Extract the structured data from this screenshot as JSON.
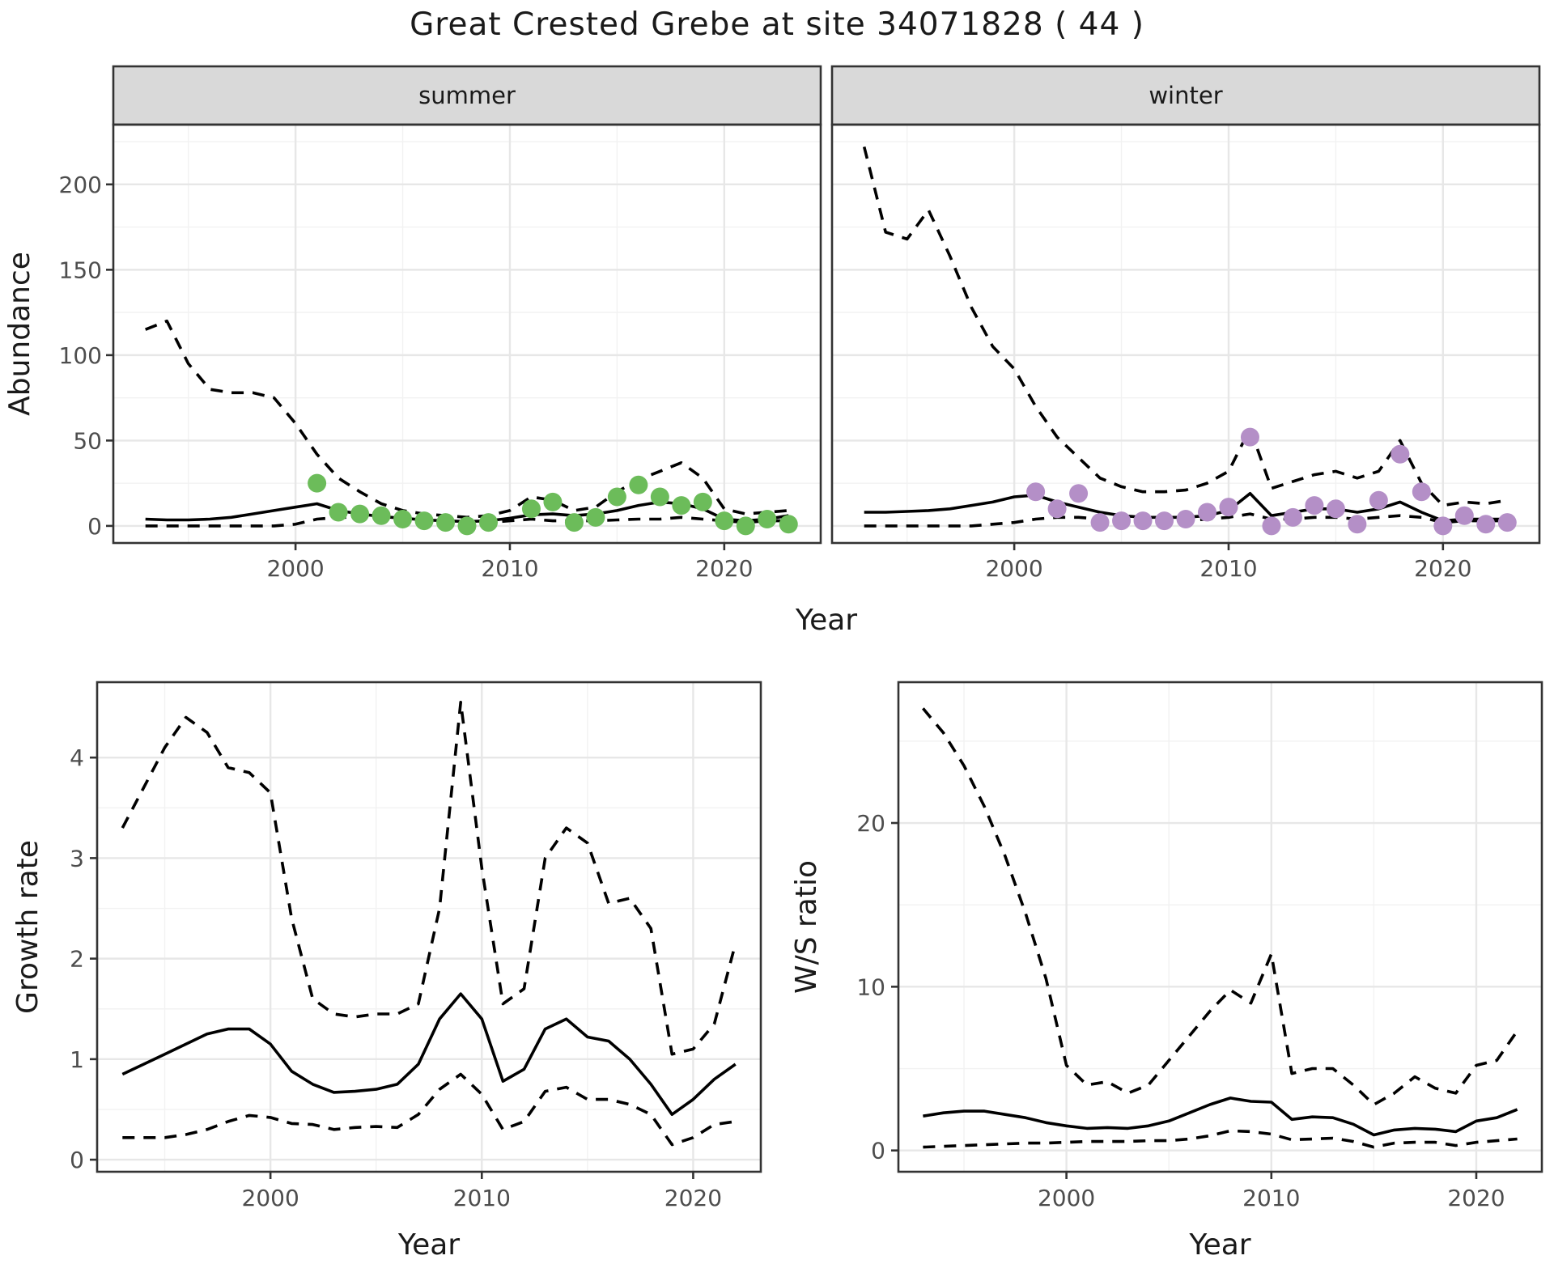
{
  "title": "Great Crested Grebe at site 34071828 ( 44 )",
  "style": {
    "point_summer": "#6cbc5a",
    "point_winter": "#b48fc7",
    "strip_fill": "#d9d9d9",
    "panel_border": "#333333",
    "grid_major": "#e7e7e7",
    "grid_minor": "#f2f2f2",
    "tick_label_color": "#4d4d4d",
    "text_color": "#1a1a1a",
    "line_color": "#000000"
  },
  "chart_data": [
    {
      "id": "abundance",
      "type": "line",
      "ylabel": "Abundance",
      "xlabel": "Year",
      "ylim": [
        -10,
        235
      ],
      "xlim": [
        1991.5,
        2024.5
      ],
      "yticks": [
        0,
        50,
        100,
        150,
        200
      ],
      "yminor": [
        25,
        75,
        125,
        175,
        225
      ],
      "xticks": [
        2000,
        2010,
        2020
      ],
      "xminor": [
        1995,
        2005,
        2015
      ],
      "legend": "none",
      "grid": true,
      "panels": [
        {
          "facet": "summer",
          "point_color": "#6cbc5a",
          "years": [
            1993,
            1994,
            1995,
            1996,
            1997,
            1998,
            1999,
            2000,
            2001,
            2002,
            2003,
            2004,
            2005,
            2006,
            2007,
            2008,
            2009,
            2010,
            2011,
            2012,
            2013,
            2014,
            2015,
            2016,
            2017,
            2018,
            2019,
            2020,
            2021,
            2022,
            2023
          ],
          "pred": [
            4,
            3.5,
            3.5,
            4,
            5,
            7,
            9,
            11,
            13,
            9,
            7,
            5.5,
            4.5,
            3.5,
            3,
            2.5,
            3,
            4.5,
            6.5,
            7,
            6,
            7,
            9,
            12,
            14,
            13,
            10,
            4,
            3,
            4,
            6
          ],
          "hi": [
            115,
            120,
            95,
            80,
            78,
            78,
            75,
            60,
            42,
            28,
            20,
            13,
            9,
            7,
            6,
            5,
            6,
            9,
            17,
            15,
            9,
            11,
            20,
            27,
            32,
            37,
            28,
            10,
            7,
            8,
            9
          ],
          "lo": [
            0,
            0,
            0,
            0,
            0,
            0,
            0,
            1,
            4,
            5,
            5,
            4,
            3,
            3,
            2,
            2,
            2,
            3,
            4,
            3,
            3,
            3,
            3.5,
            4,
            4,
            5,
            4,
            3,
            2,
            3,
            3
          ],
          "obs_years": [
            2001,
            2002,
            2003,
            2004,
            2005,
            2006,
            2007,
            2008,
            2009,
            2011,
            2012,
            2013,
            2014,
            2015,
            2016,
            2017,
            2018,
            2019,
            2020,
            2021,
            2022,
            2023
          ],
          "obs": [
            25,
            8,
            7,
            6,
            4,
            3,
            2,
            0,
            2,
            10,
            14,
            2,
            5,
            17,
            24,
            17,
            12,
            14,
            3,
            0,
            4,
            1
          ]
        },
        {
          "facet": "winter",
          "point_color": "#b48fc7",
          "years": [
            1993,
            1994,
            1995,
            1996,
            1997,
            1998,
            1999,
            2000,
            2001,
            2002,
            2003,
            2004,
            2005,
            2006,
            2007,
            2008,
            2009,
            2010,
            2011,
            2012,
            2013,
            2014,
            2015,
            2016,
            2017,
            2018,
            2019,
            2020,
            2021,
            2022,
            2023
          ],
          "pred": [
            8,
            8,
            8.5,
            9,
            10,
            12,
            14,
            17,
            18,
            14,
            11,
            8,
            6,
            5,
            5,
            5,
            6,
            9,
            19,
            6,
            8,
            10,
            10,
            8,
            10,
            14,
            8,
            3,
            4,
            4,
            4
          ],
          "hi": [
            222,
            172,
            168,
            185,
            158,
            128,
            105,
            92,
            70,
            52,
            40,
            28,
            23,
            20,
            20,
            21,
            25,
            32,
            57,
            22,
            26,
            30,
            32,
            28,
            32,
            50,
            25,
            12,
            14,
            13,
            15
          ],
          "lo": [
            0,
            0,
            0,
            0,
            0,
            0,
            1,
            2,
            4,
            5,
            5,
            4,
            3,
            3,
            3,
            3,
            4,
            5,
            7,
            4,
            4,
            5,
            5,
            4,
            5,
            6,
            5,
            2,
            3,
            3,
            3
          ],
          "obs_years": [
            2001,
            2002,
            2003,
            2004,
            2005,
            2006,
            2007,
            2008,
            2009,
            2010,
            2011,
            2012,
            2013,
            2014,
            2015,
            2016,
            2017,
            2018,
            2019,
            2020,
            2021,
            2022,
            2023
          ],
          "obs": [
            20,
            10,
            19,
            2,
            3,
            3,
            3,
            4,
            8,
            11,
            52,
            0,
            5,
            12,
            10,
            1,
            15,
            42,
            20,
            0,
            6,
            1,
            2
          ]
        }
      ]
    },
    {
      "id": "growth",
      "type": "line",
      "ylabel": "Growth rate",
      "xlabel": "Year",
      "ylim": [
        -0.12,
        4.75
      ],
      "xlim": [
        1991.8,
        2023.2
      ],
      "yticks": [
        0,
        1,
        2,
        3,
        4
      ],
      "yminor": [
        0.5,
        1.5,
        2.5,
        3.5
      ],
      "xticks": [
        2000,
        2010,
        2020
      ],
      "xminor": [
        1995,
        2005,
        2015
      ],
      "legend": "none",
      "grid": true,
      "panels": [
        {
          "facet": null,
          "years": [
            1993,
            1994,
            1995,
            1996,
            1997,
            1998,
            1999,
            2000,
            2001,
            2002,
            2003,
            2004,
            2005,
            2006,
            2007,
            2008,
            2009,
            2010,
            2011,
            2012,
            2013,
            2014,
            2015,
            2016,
            2017,
            2018,
            2019,
            2020,
            2021,
            2022
          ],
          "pred": [
            0.85,
            0.95,
            1.05,
            1.15,
            1.25,
            1.3,
            1.3,
            1.15,
            0.88,
            0.75,
            0.67,
            0.68,
            0.7,
            0.75,
            0.95,
            1.4,
            1.65,
            1.4,
            0.78,
            0.9,
            1.3,
            1.4,
            1.22,
            1.18,
            1.0,
            0.75,
            0.45,
            0.6,
            0.8,
            0.95
          ],
          "hi": [
            3.3,
            3.7,
            4.1,
            4.4,
            4.25,
            3.9,
            3.85,
            3.65,
            2.4,
            1.6,
            1.45,
            1.42,
            1.45,
            1.45,
            1.55,
            2.5,
            4.55,
            2.9,
            1.55,
            1.7,
            3.0,
            3.3,
            3.15,
            2.55,
            2.6,
            2.3,
            1.05,
            1.1,
            1.35,
            2.15
          ],
          "lo": [
            0.22,
            0.22,
            0.22,
            0.25,
            0.3,
            0.38,
            0.44,
            0.42,
            0.36,
            0.35,
            0.3,
            0.32,
            0.33,
            0.32,
            0.45,
            0.7,
            0.85,
            0.65,
            0.3,
            0.38,
            0.68,
            0.72,
            0.6,
            0.6,
            0.55,
            0.45,
            0.15,
            0.22,
            0.35,
            0.38
          ]
        }
      ]
    },
    {
      "id": "ws",
      "type": "line",
      "ylabel": "W/S ratio",
      "xlabel": "Year",
      "ylim": [
        -1.3,
        28.6
      ],
      "xlim": [
        1991.8,
        2023.2
      ],
      "yticks": [
        0,
        10,
        20
      ],
      "yminor": [
        5,
        15,
        25
      ],
      "xticks": [
        2000,
        2010,
        2020
      ],
      "xminor": [
        1995,
        2005,
        2015
      ],
      "legend": "none",
      "grid": true,
      "panels": [
        {
          "facet": null,
          "years": [
            1993,
            1994,
            1995,
            1996,
            1997,
            1998,
            1999,
            2000,
            2001,
            2002,
            2003,
            2004,
            2005,
            2006,
            2007,
            2008,
            2009,
            2010,
            2011,
            2012,
            2013,
            2014,
            2015,
            2016,
            2017,
            2018,
            2019,
            2020,
            2021,
            2022
          ],
          "pred": [
            2.1,
            2.3,
            2.4,
            2.4,
            2.2,
            2.0,
            1.7,
            1.5,
            1.35,
            1.4,
            1.35,
            1.5,
            1.8,
            2.3,
            2.8,
            3.2,
            3.0,
            2.95,
            1.9,
            2.05,
            2.0,
            1.6,
            0.95,
            1.25,
            1.35,
            1.3,
            1.15,
            1.8,
            2.0,
            2.5
          ],
          "hi": [
            27,
            25.5,
            23.5,
            21,
            18,
            14.5,
            10.5,
            5.2,
            4.0,
            4.2,
            3.5,
            4.0,
            5.5,
            7.0,
            8.5,
            9.8,
            9.0,
            12.0,
            4.7,
            5.0,
            5.0,
            4.0,
            2.8,
            3.5,
            4.5,
            3.8,
            3.5,
            5.2,
            5.5,
            7.3
          ],
          "lo": [
            0.2,
            0.25,
            0.3,
            0.35,
            0.4,
            0.45,
            0.45,
            0.5,
            0.55,
            0.55,
            0.55,
            0.6,
            0.6,
            0.7,
            0.9,
            1.2,
            1.15,
            1.0,
            0.65,
            0.7,
            0.75,
            0.55,
            0.2,
            0.45,
            0.5,
            0.5,
            0.3,
            0.5,
            0.6,
            0.7
          ]
        }
      ]
    }
  ]
}
